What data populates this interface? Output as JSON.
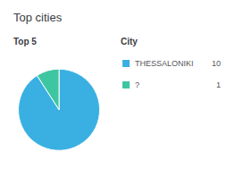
{
  "chart_data": {
    "type": "pie",
    "title": "Top cities",
    "subtitle": "Top 5",
    "annotations": [
      "City"
    ],
    "categories": [
      "THESSALONIKI",
      "?"
    ],
    "values": [
      10,
      1
    ],
    "colors": [
      "#3ab0e2",
      "#3ec6a0"
    ],
    "legend": "right"
  }
}
